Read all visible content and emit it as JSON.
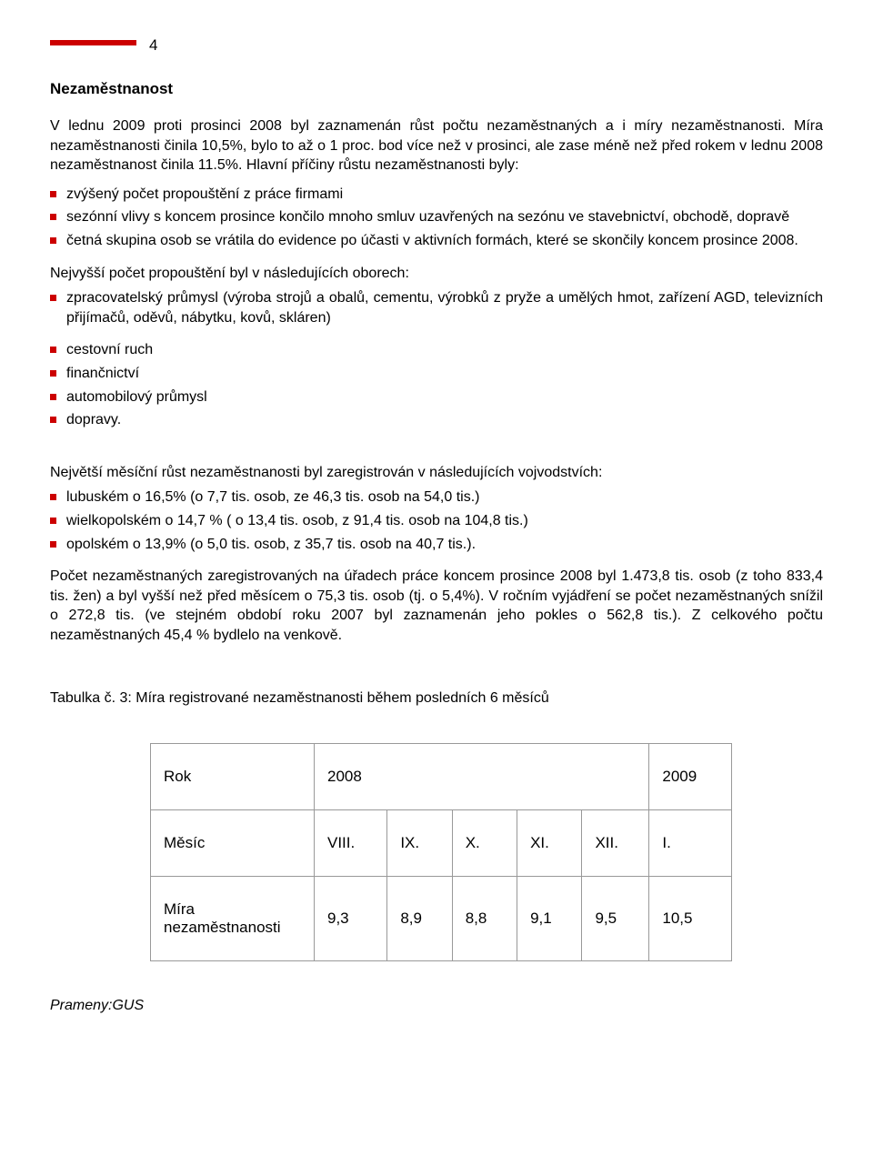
{
  "page_number": "4",
  "heading": "Nezaměstnanost",
  "intro_para": "V lednu 2009 proti prosinci 2008 byl zaznamenán růst počtu nezaměstnaných a i míry nezaměstnanosti. Míra nezaměstnanosti činila 10,5%, bylo to až o 1 proc. bod více než v prosinci, ale zase méně než před rokem v lednu 2008 nezaměstnanost činila 11.5%. Hlavní příčiny růstu nezaměstnanosti byly:",
  "causes": [
    "zvýšený počet propouštění z práce firmami",
    "sezónní vlivy s koncem prosince končilo mnoho smluv uzavřených na sezónu ve stavebnictví, obchodě, dopravě",
    "četná skupina osob se vrátila do evidence po účasti v aktivních formách, které se skončily koncem prosince 2008."
  ],
  "sectors_intro": "Nejvyšší počet propouštění byl v následujících oborech:",
  "sectors_main": [
    "zpracovatelský průmysl (výroba strojů a obalů, cementu, výrobků z pryže a umělých hmot, zařízení AGD, televizních přijímačů, oděvů, nábytku, kovů, skláren)"
  ],
  "sectors_secondary": [
    "cestovní ruch",
    "finančnictví",
    "automobilový průmysl",
    "dopravy."
  ],
  "regions_intro": "Největší měsíční růst nezaměstnanosti byl zaregistrován v následujících vojvodstvích:",
  "regions": [
    "lubuském o 16,5% (o 7,7 tis. osob, ze 46,3 tis. osob na 54,0 tis.)",
    "wielkopolském o 14,7 % ( o 13,4 tis. osob, z 91,4 tis. osob na 104,8 tis.)",
    "opolském o 13,9% (o 5,0 tis. osob, z 35,7 tis. osob na 40,7 tis.)."
  ],
  "summary_para": "Počet nezaměstnaných zaregistrovaných na úřadech práce koncem prosince 2008 byl 1.473,8 tis. osob (z toho 833,4 tis. žen) a byl vyšší než před měsícem o 75,3 tis. osob (tj. o 5,4%). V ročním vyjádření se počet nezaměstnaných snížil o 272,8 tis. (ve stejném období roku 2007 byl zaznamenán jeho pokles o 562,8 tis.). Z celkového počtu nezaměstnaných 45,4 % bydlelo na venkově.",
  "table_caption": "Tabulka č. 3: Míra registrované nezaměstnanosti během posledních 6 měsíců",
  "table": {
    "row_year": {
      "label": "Rok",
      "y2008": "2008",
      "y2009": "2009"
    },
    "row_month": {
      "label": "Měsíc",
      "m1": "VIII.",
      "m2": "IX.",
      "m3": "X.",
      "m4": "XI.",
      "m5": "XII.",
      "m6": "I."
    },
    "row_rate": {
      "label": "Míra nezaměstnanosti",
      "v1": "9,3",
      "v2": "8,9",
      "v3": "8,8",
      "v4": "9,1",
      "v5": "9,5",
      "v6": "10,5"
    }
  },
  "source": "Prameny:GUS",
  "colors": {
    "accent": "#cc0000",
    "text": "#000000",
    "border": "#999999",
    "background": "#ffffff"
  }
}
